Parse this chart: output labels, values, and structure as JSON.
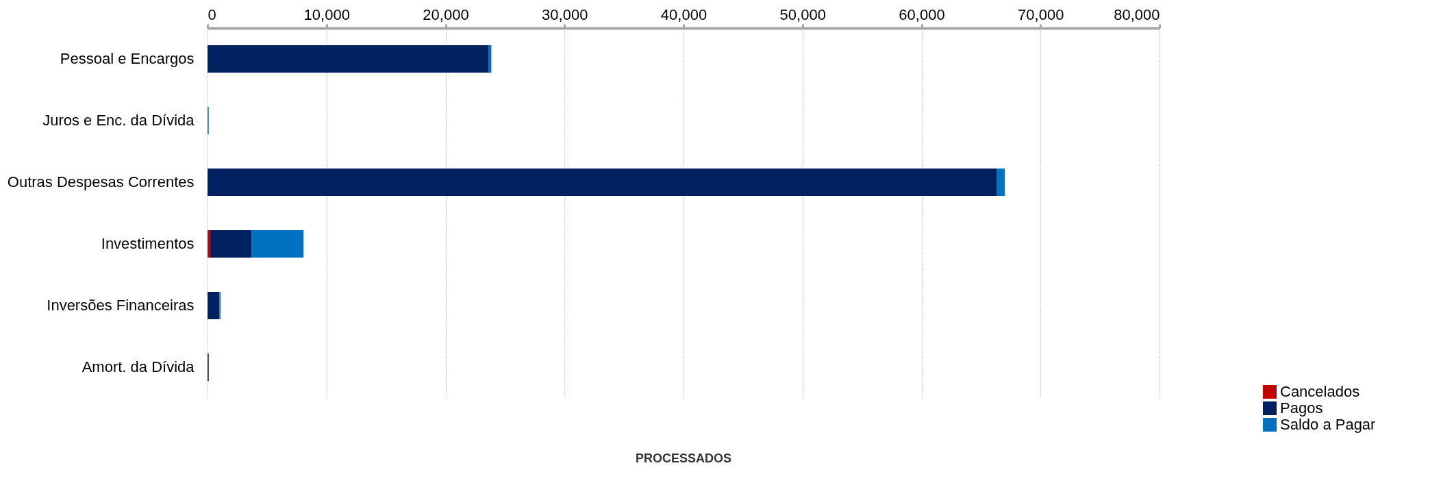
{
  "chart_data": {
    "type": "bar",
    "orientation": "horizontal",
    "stacked": true,
    "categories": [
      "Pessoal e Encargos",
      "Juros e Enc. da Dívida",
      "Outras Despesas Correntes",
      "Investimentos",
      "Inversões Financeiras",
      "Amort. da Dívida"
    ],
    "series": [
      {
        "name": "Cancelados",
        "color": "#c00000",
        "values": [
          0,
          0,
          0,
          220,
          0,
          0
        ]
      },
      {
        "name": "Pagos",
        "color": "#002060",
        "values": [
          23600,
          0,
          66300,
          3500,
          1000,
          100
        ]
      },
      {
        "name": "Saldo a Pagar",
        "color": "#0070c0",
        "values": [
          250,
          100,
          700,
          4350,
          100,
          0
        ]
      }
    ],
    "xlim": [
      0,
      80000
    ],
    "xticks": [
      0,
      {
        "value": 10000,
        "label": "10,000"
      },
      {
        "value": 20000,
        "label": "20,000"
      },
      {
        "value": 30000,
        "label": "30,000"
      },
      {
        "value": 40000,
        "label": "40,000"
      },
      {
        "value": 50000,
        "label": "50,000"
      },
      {
        "value": 60000,
        "label": "60,000"
      },
      {
        "value": 70000,
        "label": "70,000"
      },
      {
        "value": 80000,
        "label": "80,000"
      }
    ],
    "grid": "x",
    "legend": "bottom right",
    "annotations": [
      "PROCESSADOS"
    ]
  }
}
